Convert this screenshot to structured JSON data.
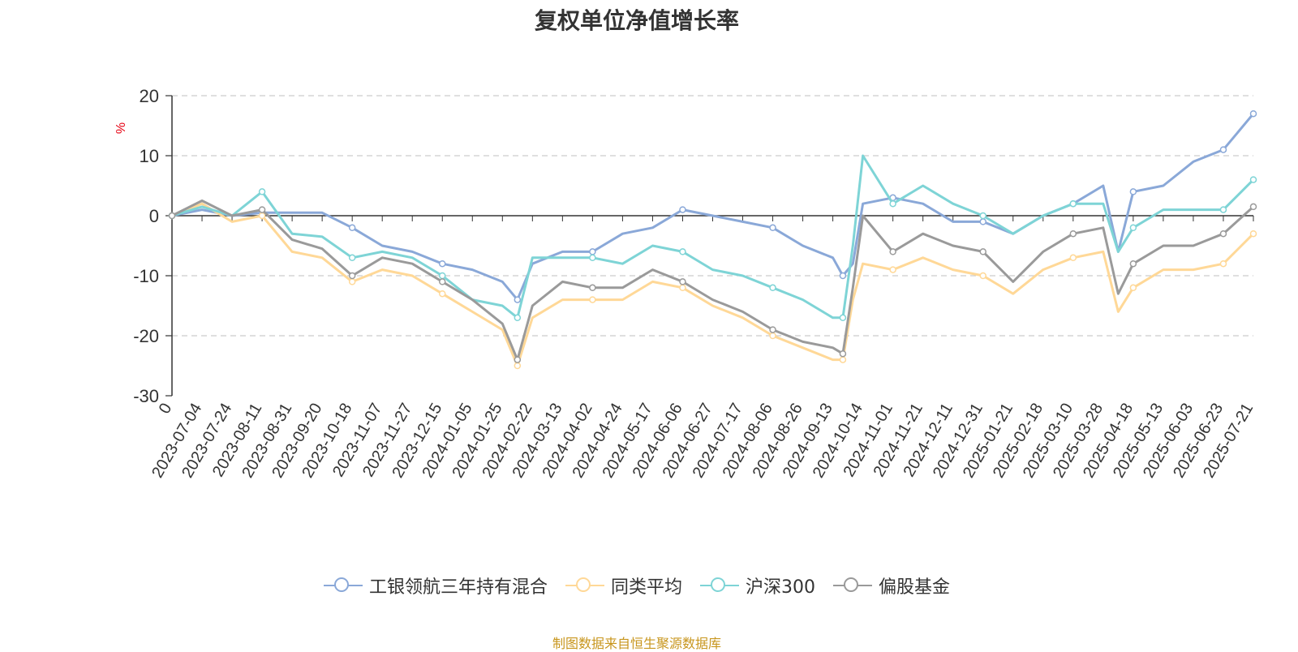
{
  "colors": {
    "fund": "#8AA8D8",
    "peer_avg": "#FFD897",
    "csi300": "#7ED4D6",
    "equity_bias": "#9A9A9A",
    "ylabel": "#E60012",
    "source": "#C8961E"
  },
  "chart_data": {
    "type": "line",
    "title": "复权单位净值增长率",
    "ylabel": "%",
    "ylim": [
      -30,
      20
    ],
    "yticks": [
      20,
      10,
      0,
      -10,
      -20,
      -30
    ],
    "grid": true,
    "legend_position": "bottom",
    "x_tick_labels": [
      "0",
      "2023-07-04",
      "2023-07-24",
      "2023-08-11",
      "2023-08-31",
      "2023-09-20",
      "2023-10-18",
      "2023-11-07",
      "2023-11-27",
      "2023-12-15",
      "2024-01-05",
      "2024-01-25",
      "2024-02-22",
      "2024-03-13",
      "2024-04-02",
      "2024-04-24",
      "2024-05-17",
      "2024-06-06",
      "2024-06-27",
      "2024-07-17",
      "2024-08-06",
      "2024-08-26",
      "2024-09-13",
      "2024-10-14",
      "2024-11-01",
      "2024-11-21",
      "2024-12-11",
      "2024-12-31",
      "2025-01-21",
      "2025-02-18",
      "2025-03-10",
      "2025-03-28",
      "2025-04-18",
      "2025-05-13",
      "2025-06-03",
      "2025-06-23",
      "2025-07-21"
    ],
    "x": [
      "0",
      "2023-07-04",
      "2023-07-24",
      "2023-08-11",
      "2023-08-31",
      "2023-09-20",
      "2023-10-18",
      "2023-11-07",
      "2023-11-27",
      "2023-12-15",
      "2024-01-05",
      "2024-01-25",
      "2024-02-05",
      "2024-02-22",
      "2024-03-13",
      "2024-04-02",
      "2024-04-24",
      "2024-05-17",
      "2024-06-06",
      "2024-06-27",
      "2024-07-17",
      "2024-08-06",
      "2024-08-26",
      "2024-09-13",
      "2024-09-23",
      "2024-10-08",
      "2024-10-14",
      "2024-11-01",
      "2024-11-21",
      "2024-12-11",
      "2024-12-31",
      "2025-01-21",
      "2025-02-18",
      "2025-03-10",
      "2025-03-28",
      "2025-04-07",
      "2025-04-18",
      "2025-05-13",
      "2025-06-03",
      "2025-06-23",
      "2025-07-21"
    ],
    "series": [
      {
        "name": "工银领航三年持有混合",
        "color_key": "fund",
        "values": [
          0,
          1.0,
          0,
          0.5,
          0.5,
          0.5,
          -2,
          -5,
          -6,
          -8,
          -9,
          -11,
          -14,
          -8,
          -6,
          -6,
          -3,
          -2,
          1,
          0,
          -1,
          -2,
          -5,
          -7,
          -10,
          -8,
          2,
          3,
          2,
          -1,
          -1,
          -3,
          0,
          2,
          5,
          -6,
          4,
          5,
          9,
          11,
          17
        ]
      },
      {
        "name": "同类平均",
        "color_key": "peer_avg",
        "values": [
          0,
          2.0,
          -1,
          0,
          -6,
          -7,
          -11,
          -9,
          -10,
          -13,
          -16,
          -19,
          -25,
          -17,
          -14,
          -14,
          -14,
          -11,
          -12,
          -15,
          -17,
          -20,
          -22,
          -24,
          -24,
          -14,
          -8,
          -9,
          -7,
          -9,
          -10,
          -13,
          -9,
          -7,
          -6,
          -16,
          -12,
          -9,
          -9,
          -8,
          -3
        ]
      },
      {
        "name": "沪深300",
        "color_key": "csi300",
        "values": [
          0,
          1.5,
          0,
          4,
          -3,
          -3.5,
          -7,
          -6,
          -7,
          -10,
          -14,
          -15,
          -17,
          -7,
          -7,
          -7,
          -8,
          -5,
          -6,
          -9,
          -10,
          -12,
          -14,
          -17,
          -17,
          -5,
          10,
          2,
          5,
          2,
          0,
          -3,
          0,
          2,
          2,
          -6,
          -2,
          1,
          1,
          1,
          6
        ]
      },
      {
        "name": "偏股基金",
        "color_key": "equity_bias",
        "values": [
          0,
          2.5,
          0,
          1,
          -4,
          -5.5,
          -10,
          -7,
          -8,
          -11,
          -14,
          -18,
          -24,
          -15,
          -11,
          -12,
          -12,
          -9,
          -11,
          -14,
          -16,
          -19,
          -21,
          -22,
          -23,
          -12,
          0,
          -6,
          -3,
          -5,
          -6,
          -11,
          -6,
          -3,
          -2,
          -13,
          -8,
          -5,
          -5,
          -3,
          1.5
        ]
      }
    ]
  },
  "legend": {
    "items": [
      {
        "label": "工银领航三年持有混合",
        "color_key": "fund"
      },
      {
        "label": "同类平均",
        "color_key": "peer_avg"
      },
      {
        "label": "沪深300",
        "color_key": "csi300"
      },
      {
        "label": "偏股基金",
        "color_key": "equity_bias"
      }
    ]
  },
  "footer": {
    "source_text": "制图数据来自恒生聚源数据库"
  }
}
